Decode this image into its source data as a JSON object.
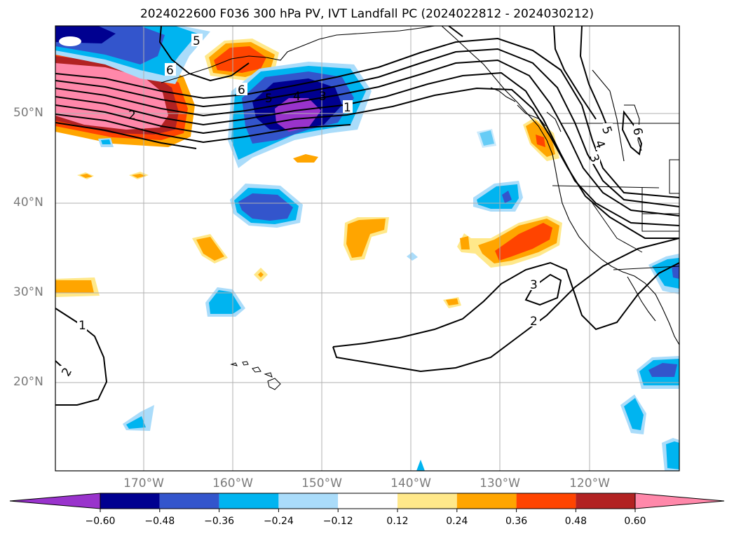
{
  "title": "2024022600 F036 300 hPa PV, IVT Landfall PC (2024022812 - 2024030212)",
  "axes": {
    "lat_labels": [
      "50°N",
      "40°N",
      "30°N",
      "20°N"
    ],
    "lon_labels": [
      "170°W",
      "160°W",
      "150°W",
      "140°W",
      "130°W",
      "120°W"
    ]
  },
  "colorbar": {
    "tick_labels": [
      "−0.60",
      "−0.48",
      "−0.36",
      "−0.24",
      "−0.12",
      "0.12",
      "0.24",
      "0.36",
      "0.48",
      "0.60"
    ],
    "colors": [
      "#9933cc",
      "#000090",
      "#3355cc",
      "#00b4f0",
      "#aadcfa",
      "#ffffff",
      "#ffe88a",
      "#ffa500",
      "#ff4400",
      "#b22222",
      "#ff88aa"
    ]
  },
  "contour_labels": [
    "5",
    "6",
    "6",
    "2",
    "5",
    "4",
    "3",
    "1",
    "5",
    "4",
    "3",
    "6",
    "3",
    "2",
    "1",
    "2"
  ],
  "map_features": [
    "coastlines",
    "country borders",
    "state borders",
    "lat/lon grid"
  ]
}
